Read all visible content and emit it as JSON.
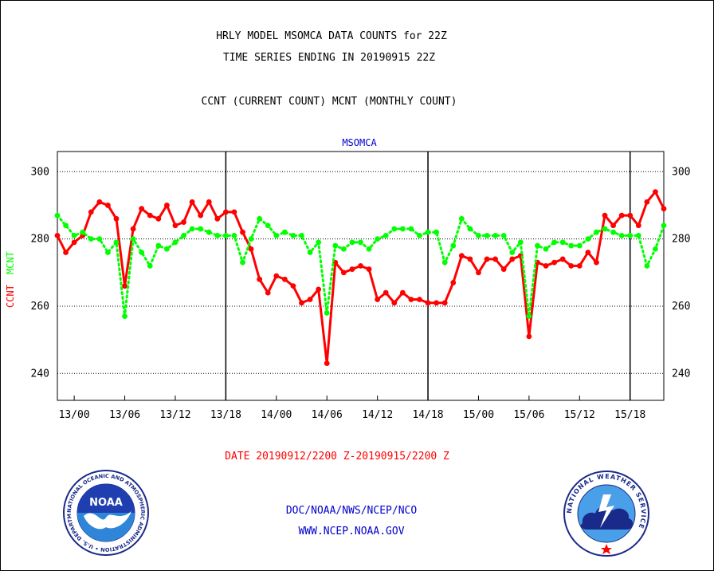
{
  "header": {
    "line1": "HRLY MODEL MSOMCA DATA COUNTS for 22Z",
    "line2": "TIME SERIES ENDING IN 20190915 22Z",
    "line3": "CCNT (CURRENT COUNT) MCNT (MONTHLY COUNT)"
  },
  "footer": {
    "date_range": "DATE 20190912/2200 Z-20190915/2200 Z",
    "org": "DOC/NOAA/NWS/NCEP/NCO",
    "url": "WWW.NCEP.NOAA.GOV"
  },
  "logos": {
    "noaa_text": "NOAA",
    "noaa_ring": "NATIONAL OCEANIC AND ATMOSPHERIC ADMINISTRATION • U.S. DEPARTMENT OF COMMERCE •",
    "nws_ring": "NATIONAL WEATHER SERVICE"
  },
  "chart_data": {
    "type": "line",
    "title": "MSOMCA",
    "ylabel_left_1": "CCNT",
    "ylabel_left_2": "MCNT",
    "ylim": [
      232,
      306
    ],
    "yticks": [
      240,
      260,
      280,
      300
    ],
    "xticks": [
      {
        "label": "13/00",
        "x": 2
      },
      {
        "label": "13/06",
        "x": 8
      },
      {
        "label": "13/12",
        "x": 14
      },
      {
        "label": "13/18",
        "x": 20
      },
      {
        "label": "14/00",
        "x": 26
      },
      {
        "label": "14/06",
        "x": 32
      },
      {
        "label": "14/12",
        "x": 38
      },
      {
        "label": "14/18",
        "x": 44
      },
      {
        "label": "15/00",
        "x": 50
      },
      {
        "label": "15/06",
        "x": 56
      },
      {
        "label": "15/12",
        "x": 62
      },
      {
        "label": "15/18",
        "x": 68
      }
    ],
    "day_boundaries": [
      20,
      44,
      68
    ],
    "xlim": [
      0,
      72
    ],
    "grid": true,
    "colors": {
      "ccnt": "#ff0000",
      "mcnt": "#00ff00",
      "title": "#0000cc",
      "ccnt_label": "#ff0000",
      "mcnt_label": "#00ff00"
    },
    "series": [
      {
        "name": "CCNT",
        "style": "solid",
        "values": [
          281,
          276,
          279,
          281,
          288,
          291,
          290,
          286,
          266,
          283,
          289,
          287,
          286,
          290,
          284,
          285,
          291,
          287,
          291,
          286,
          288,
          288,
          282,
          277,
          268,
          264,
          269,
          268,
          266,
          261,
          262,
          265,
          243,
          273,
          270,
          271,
          272,
          271,
          262,
          264,
          261,
          264,
          262,
          262,
          261,
          261,
          261,
          267,
          275,
          274,
          270,
          274,
          274,
          271,
          274,
          275,
          251,
          273,
          272,
          273,
          274,
          272,
          272,
          276,
          273,
          287,
          284,
          287,
          287,
          284,
          291,
          294,
          289
        ]
      },
      {
        "name": "MCNT",
        "style": "dotted",
        "values": [
          287,
          284,
          281,
          282,
          280,
          280,
          276,
          279,
          257,
          280,
          276,
          272,
          278,
          277,
          279,
          281,
          283,
          283,
          282,
          281,
          281,
          281,
          273,
          280,
          286,
          284,
          281,
          282,
          281,
          281,
          276,
          279,
          258,
          278,
          277,
          279,
          279,
          277,
          280,
          281,
          283,
          283,
          283,
          281,
          282,
          282,
          273,
          278,
          286,
          283,
          281,
          281,
          281,
          281,
          276,
          279,
          257,
          278,
          277,
          279,
          279,
          278,
          278,
          280,
          282,
          283,
          282,
          281,
          281,
          281,
          272,
          277,
          284
        ]
      }
    ]
  }
}
